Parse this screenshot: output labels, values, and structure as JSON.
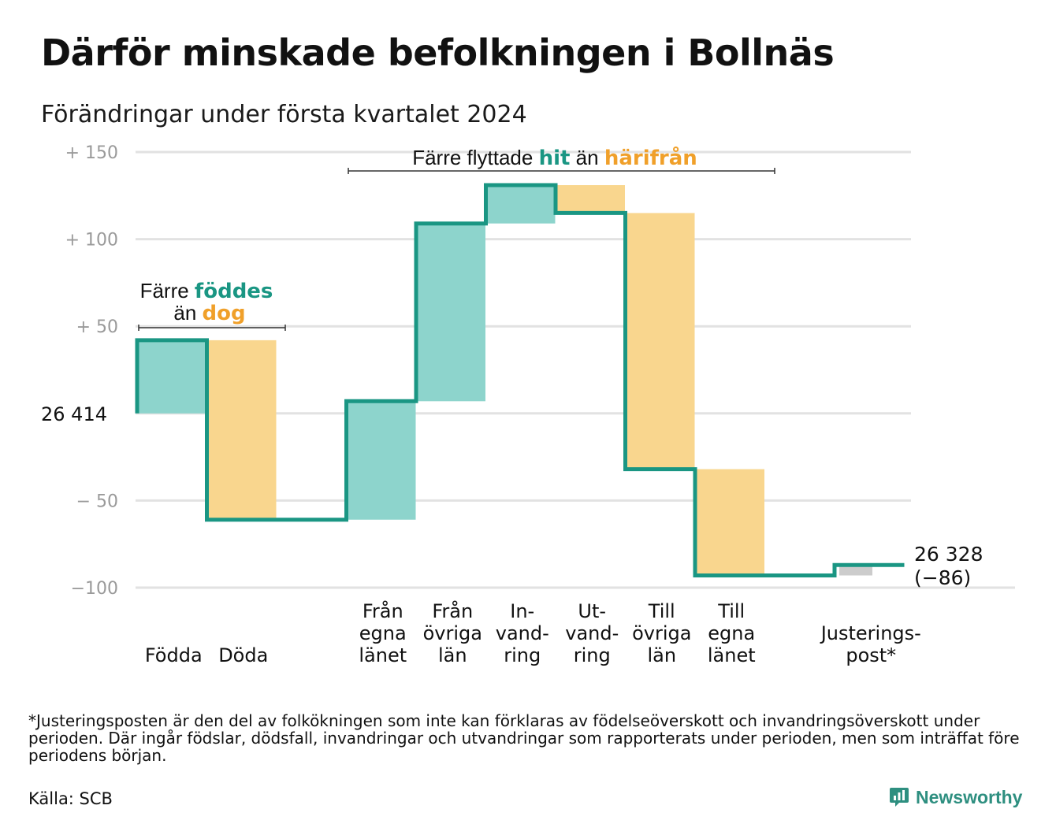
{
  "title": "Därför minskade befolkningen i Bollnäs",
  "subtitle": "Förändringar under första kvartalet 2024",
  "colors": {
    "increase": "#8dd4cc",
    "decrease": "#f9d68e",
    "adjustment": "#cccccc",
    "line": "#1a9683",
    "teal_text": "#1a9683",
    "orange_text": "#f0a02a"
  },
  "chart_data": {
    "type": "waterfall",
    "start_value": 26414,
    "start_label": "26  414",
    "end_label": "26 328",
    "end_change_label": "(−86)",
    "ylim": [
      -100,
      150
    ],
    "yticks": [
      {
        "value": 150,
        "label": "+  150"
      },
      {
        "value": 100,
        "label": "+  100"
      },
      {
        "value": 50,
        "label": "+  50"
      },
      {
        "value": 0,
        "label": ""
      },
      {
        "value": -50,
        "label": "−  50"
      },
      {
        "value": -100,
        "label": "−100"
      }
    ],
    "steps": [
      {
        "label": [
          "Födda"
        ],
        "change": 42,
        "kind": "increase"
      },
      {
        "label": [
          "Döda"
        ],
        "change": -103,
        "kind": "decrease"
      },
      {
        "label": [],
        "change": 0,
        "kind": "gap"
      },
      {
        "label": [
          "Från",
          "egna",
          "länet"
        ],
        "change": 68,
        "kind": "increase"
      },
      {
        "label": [
          "Från",
          "övriga",
          "län"
        ],
        "change": 102,
        "kind": "increase"
      },
      {
        "label": [
          "In-",
          "vand-",
          "ring"
        ],
        "change": 22,
        "kind": "increase"
      },
      {
        "label": [
          "Ut-",
          "vand-",
          "ring"
        ],
        "change": -16,
        "kind": "decrease"
      },
      {
        "label": [
          "Till",
          "övriga",
          "län"
        ],
        "change": -147,
        "kind": "decrease"
      },
      {
        "label": [
          "Till",
          "egna",
          "länet"
        ],
        "change": -61,
        "kind": "decrease"
      },
      {
        "label": [],
        "change": 0,
        "kind": "gap"
      },
      {
        "label": [
          "Justerings-",
          "post*"
        ],
        "change": 6,
        "kind": "adjustment"
      }
    ],
    "annotations": [
      {
        "parts": [
          "Färre ",
          "föddes"
        ],
        "line2": [
          "än ",
          "dog"
        ]
      },
      {
        "parts": [
          "Färre flyttade ",
          "hit",
          " än ",
          "härifrån"
        ]
      }
    ]
  },
  "footnote": "*Justeringsposten är den del av folkökningen som inte kan förklaras av födelseöverskott och invandringsöverskott under perioden. Där ingår födslar, dödsfall, invandringar och utvandringar som rapporterats under perioden, men som inträffat före periodens början.",
  "source": "Källa: SCB",
  "brand": {
    "name": "Newsworthy",
    "icon": "bar-chart-speech-bubble-icon"
  }
}
